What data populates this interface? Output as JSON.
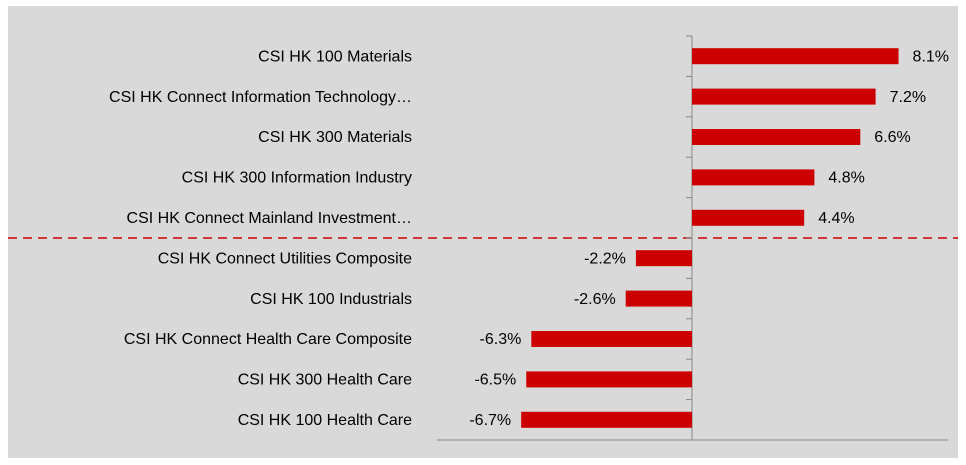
{
  "chart_data": {
    "type": "bar",
    "orientation": "horizontal",
    "categories": [
      "CSI HK 100 Materials",
      "CSI HK Connect Information Technology…",
      "CSI HK 300 Materials",
      "CSI HK 300 Information Industry",
      "CSI HK Connect Mainland Investment…",
      "CSI HK Connect Utilities Composite",
      "CSI HK 100 Industrials",
      "CSI HK Connect Health Care Composite",
      "CSI HK 300 Health Care",
      "CSI HK 100 Health Care"
    ],
    "values": [
      8.1,
      7.2,
      6.6,
      4.8,
      4.4,
      -2.2,
      -2.6,
      -6.3,
      -6.5,
      -6.7
    ],
    "value_labels": [
      "8.1%",
      "7.2%",
      "6.6%",
      "4.8%",
      "4.4%",
      "-2.2%",
      "-2.6%",
      "-6.3%",
      "-6.5%",
      "-6.7%"
    ],
    "color": "#cc0000",
    "xlim": [
      -10,
      10
    ]
  }
}
